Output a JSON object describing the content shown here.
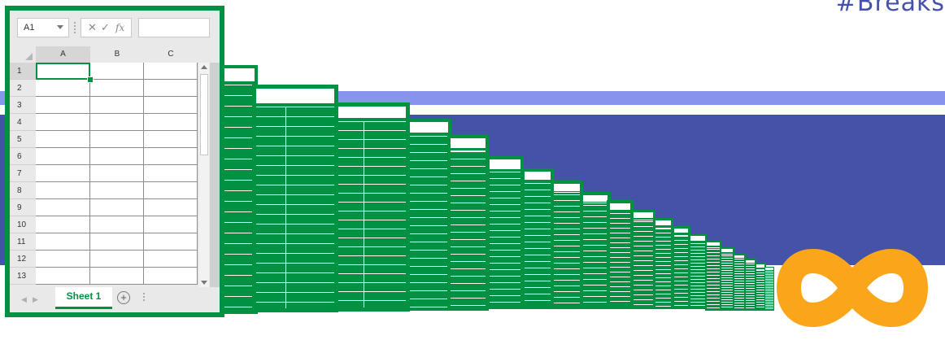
{
  "banner": {
    "text": "#Breaks"
  },
  "spreadsheet": {
    "name_box": "A1",
    "formula_buttons": {
      "cancel": "✕",
      "confirm": "✓",
      "function": "fx"
    },
    "formula_value": "",
    "columns": [
      "A",
      "B",
      "C"
    ],
    "rows": [
      "1",
      "2",
      "3",
      "4",
      "5",
      "6",
      "7",
      "8",
      "9",
      "10",
      "11",
      "12",
      "13"
    ],
    "selected_cell": "A1",
    "tab": {
      "label": "Sheet 1",
      "add_label": "+"
    }
  },
  "colors": {
    "green": "#019142",
    "band_light": "#8694ee",
    "band_dark": "#4452a8",
    "infinity": "#fba61a"
  },
  "icons": [
    "infinity-icon",
    "add-sheet-icon",
    "chevron-down-icon",
    "scroll-up-icon",
    "scroll-down-icon"
  ]
}
